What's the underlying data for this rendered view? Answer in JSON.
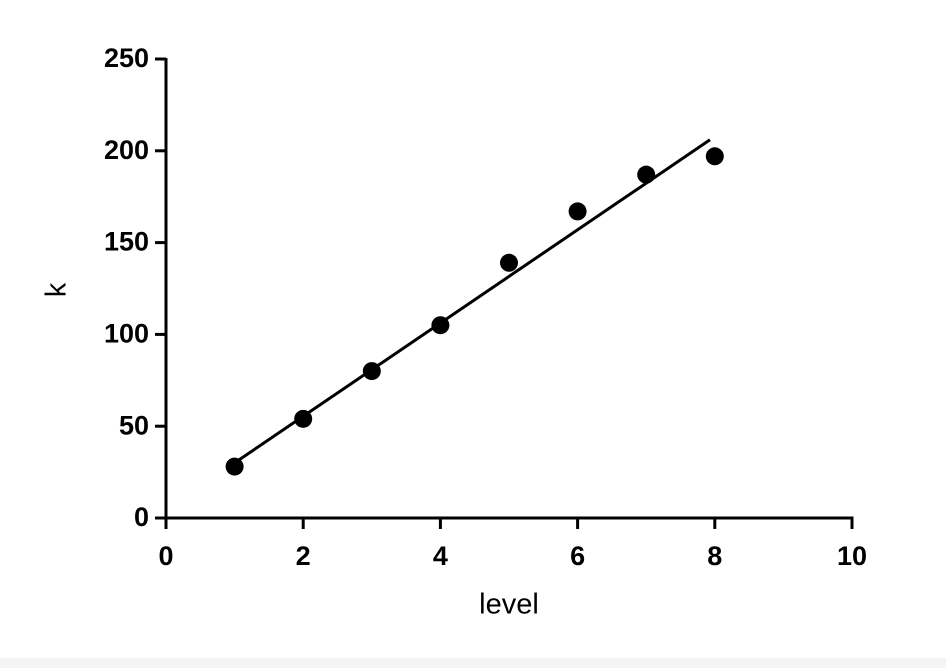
{
  "chart_data": {
    "type": "scatter",
    "x_label": "level",
    "y_label": "k",
    "series": [
      {
        "color": "#000000",
        "x": [
          1,
          2,
          3,
          4,
          5,
          6,
          7,
          8
        ],
        "values": [
          28,
          54,
          80,
          105,
          139,
          167,
          187,
          197
        ]
      }
    ],
    "fit_line": {
      "color": "#000000",
      "x": [
        1,
        7.93
      ],
      "values": [
        30,
        206
      ]
    },
    "xlim": [
      0,
      10
    ],
    "xticks": [
      0,
      2,
      4,
      6,
      8,
      10
    ],
    "ylim": [
      0,
      250
    ],
    "yticks": [
      0,
      50,
      100,
      150,
      200,
      250
    ],
    "grid": false
  }
}
